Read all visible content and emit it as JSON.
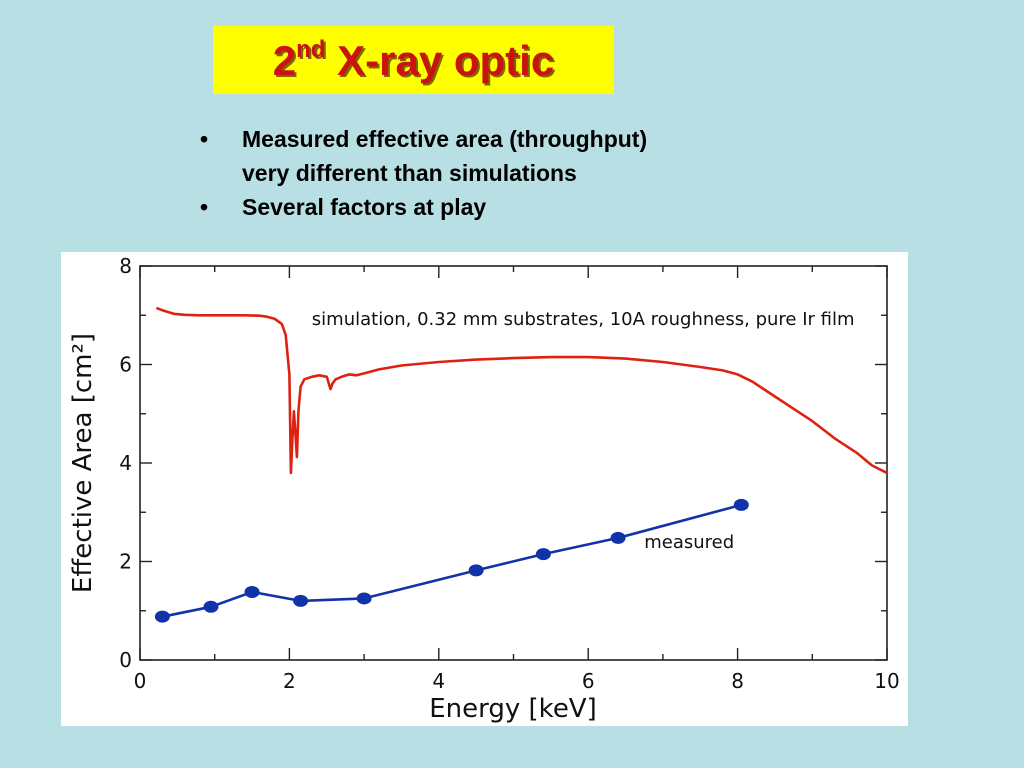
{
  "slide": {
    "title_main": "2",
    "title_sup": "nd",
    "title_rest": " X-ray optic",
    "bullet_marker": "•",
    "bullets": [
      [
        "Measured effective area (throughput)",
        "very different than simulations"
      ],
      [
        "Several factors at play"
      ]
    ]
  },
  "colors": {
    "background": "#b8dfe3",
    "title_box": "#ffff00",
    "title_text": "#cc1111",
    "simulation_line": "#dd2211",
    "measured_line": "#1133aa"
  },
  "chart_data": {
    "type": "line",
    "xlabel": "Energy [keV]",
    "ylabel": "Effective Area [cm²]",
    "xlim": [
      0,
      10
    ],
    "ylim": [
      0,
      8
    ],
    "xticks": [
      0,
      2,
      4,
      6,
      8,
      10
    ],
    "yticks": [
      0,
      2,
      4,
      6,
      8
    ],
    "grid": false,
    "series": [
      {
        "name": "simulation, 0.32 mm substrates, 10A roughness, pure Ir film",
        "color": "#dd2211",
        "markers": false,
        "x": [
          0.22,
          0.3,
          0.45,
          0.6,
          0.8,
          1.0,
          1.2,
          1.4,
          1.6,
          1.7,
          1.8,
          1.9,
          1.95,
          2.0,
          2.02,
          2.04,
          2.06,
          2.08,
          2.1,
          2.12,
          2.15,
          2.2,
          2.3,
          2.4,
          2.5,
          2.55,
          2.58,
          2.62,
          2.7,
          2.8,
          2.9,
          3.0,
          3.1,
          3.2,
          3.5,
          4.0,
          4.5,
          5.0,
          5.5,
          6.0,
          6.5,
          7.0,
          7.5,
          7.8,
          8.0,
          8.2,
          8.5,
          8.8,
          9.0,
          9.3,
          9.6,
          9.8,
          10.0
        ],
        "y": [
          7.15,
          7.1,
          7.03,
          7.01,
          7.0,
          7.0,
          7.0,
          7.0,
          6.99,
          6.97,
          6.93,
          6.82,
          6.6,
          5.8,
          3.8,
          4.5,
          5.05,
          4.6,
          4.12,
          5.05,
          5.55,
          5.7,
          5.75,
          5.78,
          5.75,
          5.5,
          5.62,
          5.7,
          5.75,
          5.8,
          5.78,
          5.82,
          5.86,
          5.9,
          5.98,
          6.05,
          6.1,
          6.13,
          6.15,
          6.15,
          6.12,
          6.05,
          5.95,
          5.88,
          5.8,
          5.65,
          5.35,
          5.05,
          4.85,
          4.5,
          4.2,
          3.95,
          3.8
        ]
      },
      {
        "name": "measured",
        "color": "#1133aa",
        "markers": true,
        "x": [
          0.3,
          0.95,
          1.5,
          2.15,
          3.0,
          4.5,
          5.4,
          6.4,
          8.05
        ],
        "y": [
          0.88,
          1.08,
          1.38,
          1.2,
          1.25,
          1.82,
          2.15,
          2.48,
          3.15
        ]
      }
    ],
    "annotations": [
      {
        "text": "simulation, 0.32 mm substrates, 10A roughness, pure Ir film",
        "x": 2.3,
        "y": 6.8
      },
      {
        "text": "measured",
        "x": 6.75,
        "y": 2.27
      }
    ]
  }
}
